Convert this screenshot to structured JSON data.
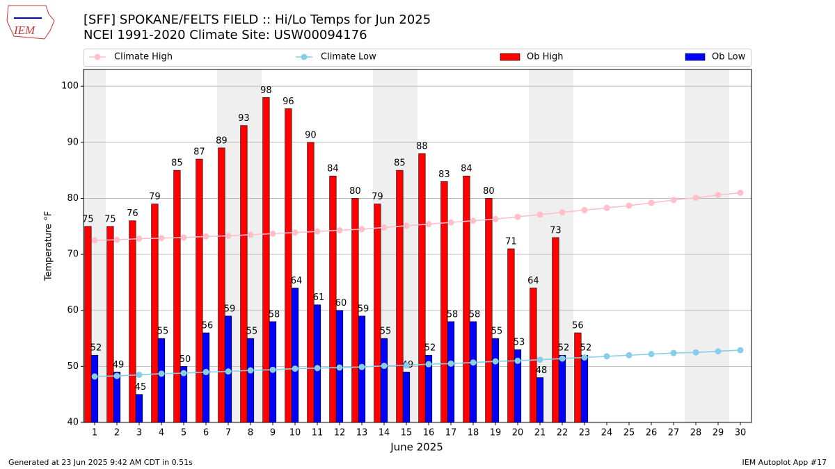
{
  "chart_data": {
    "type": "bar",
    "title": "[SFF] SPOKANE/FELTS FIELD :: Hi/Lo Temps for Jun 2025",
    "subtitle": "NCEI 1991-2020 Climate Site: USW00094176",
    "logo": "IEM",
    "xlabel": "June 2025",
    "ylabel": "Temperature °F",
    "footer_left": "Generated at 23 Jun 2025 9:42 AM CDT in 0.51s",
    "footer_right": "IEM Autoplot App #17",
    "x": [
      1,
      2,
      3,
      4,
      5,
      6,
      7,
      8,
      9,
      10,
      11,
      12,
      13,
      14,
      15,
      16,
      17,
      18,
      19,
      20,
      21,
      22,
      23,
      24,
      25,
      26,
      27,
      28,
      29,
      30
    ],
    "xlim": [
      0.5,
      30.5
    ],
    "xticks": [
      1,
      2,
      3,
      4,
      5,
      6,
      7,
      8,
      9,
      10,
      11,
      12,
      13,
      14,
      15,
      16,
      17,
      18,
      19,
      20,
      21,
      22,
      23,
      24,
      25,
      26,
      27,
      28,
      29,
      30
    ],
    "ylim": [
      40,
      103
    ],
    "yticks": [
      40,
      50,
      60,
      70,
      80,
      90,
      100
    ],
    "grid": true,
    "legend": "top",
    "series": [
      {
        "name": "Climate High",
        "style": "line",
        "color": "#ffc0cb",
        "values": [
          72.5,
          72.6,
          72.8,
          72.9,
          73.0,
          73.2,
          73.3,
          73.5,
          73.7,
          73.9,
          74.1,
          74.3,
          74.5,
          74.8,
          75.1,
          75.4,
          75.7,
          76.0,
          76.3,
          76.7,
          77.1,
          77.5,
          77.9,
          78.3,
          78.7,
          79.2,
          79.7,
          80.1,
          80.6,
          81.0
        ]
      },
      {
        "name": "Climate Low",
        "style": "line",
        "color": "#87ceeb",
        "values": [
          48.2,
          48.3,
          48.5,
          48.7,
          48.8,
          49.0,
          49.1,
          49.3,
          49.4,
          49.6,
          49.7,
          49.8,
          49.9,
          50.1,
          50.2,
          50.4,
          50.5,
          50.7,
          50.9,
          51.0,
          51.2,
          51.4,
          51.6,
          51.8,
          52.0,
          52.2,
          52.4,
          52.5,
          52.7,
          52.9
        ]
      },
      {
        "name": "Ob High",
        "style": "bar",
        "color": "#ff0000",
        "values": [
          75,
          75,
          76,
          79,
          85,
          87,
          89,
          93,
          98,
          96,
          90,
          84,
          80,
          79,
          85,
          88,
          83,
          84,
          80,
          71,
          64,
          73,
          56,
          null,
          null,
          null,
          null,
          null,
          null,
          null
        ]
      },
      {
        "name": "Ob Low",
        "style": "bar",
        "color": "#0000ff",
        "values": [
          52,
          49,
          45,
          55,
          50,
          56,
          59,
          55,
          58,
          64,
          61,
          60,
          59,
          55,
          49,
          52,
          58,
          58,
          55,
          53,
          48,
          52,
          52,
          null,
          null,
          null,
          null,
          null,
          null,
          null
        ]
      }
    ]
  }
}
